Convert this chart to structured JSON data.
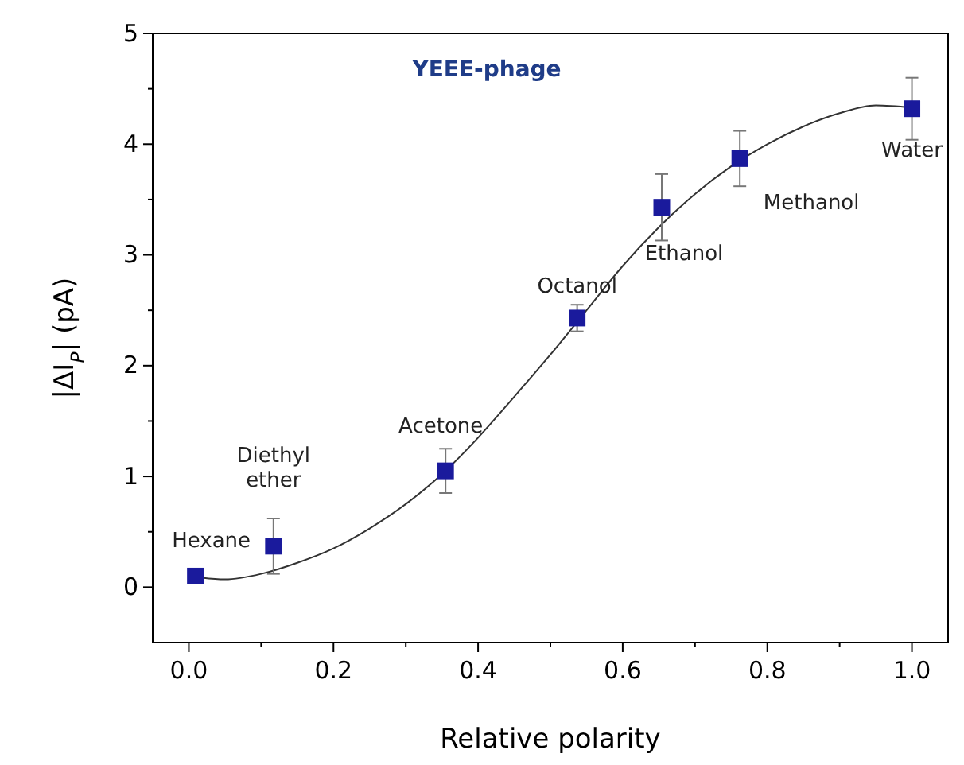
{
  "chart_data": {
    "type": "scatter",
    "title": "YEEE-phage",
    "xlabel": "Relative polarity",
    "ylabel": "|ΔI$_{P}$| (pA)",
    "xlim": [
      -0.05,
      1.05
    ],
    "ylim": [
      -0.5,
      5
    ],
    "xticks": [
      {
        "value": 0,
        "label": "0.0"
      },
      {
        "value": 0.1,
        "label": null
      },
      {
        "value": 0.2,
        "label": "0.2"
      },
      {
        "value": 0.3,
        "label": null
      },
      {
        "value": 0.4,
        "label": "0.4"
      },
      {
        "value": 0.5,
        "label": null
      },
      {
        "value": 0.6,
        "label": "0.6"
      },
      {
        "value": 0.7,
        "label": null
      },
      {
        "value": 0.8,
        "label": "0.8"
      },
      {
        "value": 0.9,
        "label": null
      },
      {
        "value": 1,
        "label": "1.0"
      }
    ],
    "yticks": [
      0,
      {
        "value": 0.5,
        "label": null
      },
      1,
      {
        "value": 1.5,
        "label": null
      },
      2,
      {
        "value": 2.5,
        "label": null
      },
      3,
      {
        "value": 3.5,
        "label": null
      },
      4,
      {
        "value": 4.5,
        "label": null
      },
      5
    ],
    "series": [
      {
        "type": "scatter",
        "marker": "square",
        "color": "#1a1a9c",
        "x": [
          0.009,
          0.117,
          0.355,
          0.537,
          0.654,
          0.762,
          1.0
        ],
        "values": [
          0.1,
          0.37,
          1.05,
          2.43,
          3.43,
          3.87,
          4.32
        ],
        "errors": [
          null,
          0.25,
          0.2,
          0.12,
          0.3,
          0.25,
          0.28
        ]
      },
      {
        "type": "line",
        "color": "#333333",
        "x": [
          0.0,
          0.05,
          0.1,
          0.15,
          0.2,
          0.25,
          0.3,
          0.35,
          0.4,
          0.45,
          0.5,
          0.55,
          0.6,
          0.65,
          0.7,
          0.75,
          0.8,
          0.85,
          0.9,
          0.95,
          1.0
        ],
        "values": [
          0.1,
          0.07,
          0.12,
          0.22,
          0.35,
          0.53,
          0.75,
          1.02,
          1.35,
          1.72,
          2.1,
          2.5,
          2.9,
          3.25,
          3.55,
          3.8,
          4.0,
          4.16,
          4.28,
          4.35,
          4.33
        ]
      }
    ],
    "annotations": [
      {
        "text": "Hexane",
        "x": 0.009,
        "y": 0.1
      },
      {
        "text": "Diethyl ether",
        "x": 0.117,
        "y": 0.37
      },
      {
        "text": "Acetone",
        "x": 0.355,
        "y": 1.05
      },
      {
        "text": "Octanol",
        "x": 0.537,
        "y": 2.43
      },
      {
        "text": "Ethanol",
        "x": 0.654,
        "y": 3.43
      },
      {
        "text": "Methanol",
        "x": 0.762,
        "y": 3.87
      },
      {
        "text": "Water",
        "x": 1.0,
        "y": 4.32
      }
    ]
  }
}
